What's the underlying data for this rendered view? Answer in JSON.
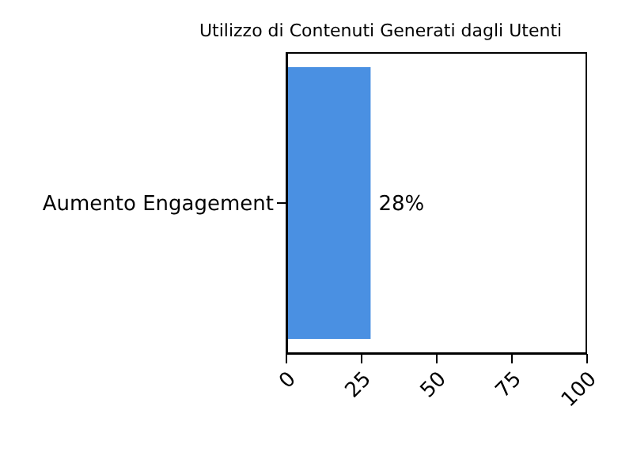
{
  "chart_data": {
    "type": "bar",
    "orientation": "horizontal",
    "title": "Utilizzo di Contenuti Generati dagli Utenti",
    "categories": [
      "Aumento Engagement"
    ],
    "values": [
      28
    ],
    "color": "#4a90e2",
    "value_labels": [
      "28%"
    ],
    "xlim": [
      0,
      100
    ],
    "xticks": [
      0,
      25,
      50,
      75,
      100
    ],
    "grid": false
  }
}
